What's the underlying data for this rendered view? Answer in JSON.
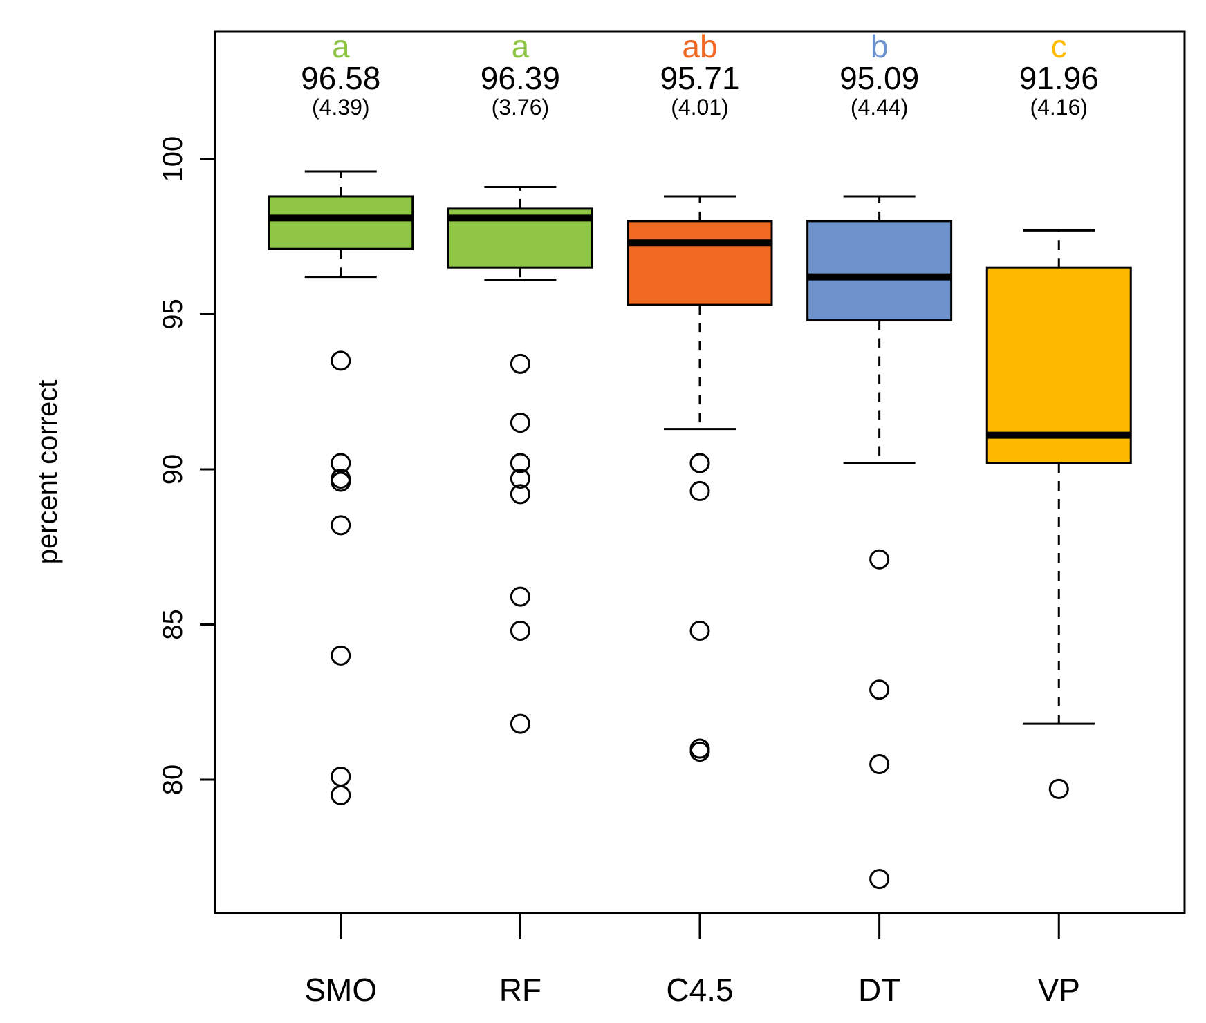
{
  "chart_data": {
    "type": "boxplot",
    "title": "",
    "xlabel": "",
    "ylabel": "percent correct",
    "ylim": [
      75.7,
      104.1
    ],
    "yticks": [
      "80",
      "85",
      "90",
      "95",
      "100"
    ],
    "categories": [
      "SMO",
      "RF",
      "C4.5",
      "DT",
      "VP"
    ],
    "series": [
      {
        "name": "SMO",
        "group": "a",
        "mean": "96.58",
        "sd": "(4.39)",
        "color": "#8FC646",
        "whisker_low": 96.2,
        "q1": 97.1,
        "median": 98.1,
        "q3": 98.8,
        "whisker_high": 99.6,
        "outliers": [
          93.5,
          90.2,
          89.7,
          89.6,
          88.2,
          84.0,
          80.1,
          79.5
        ]
      },
      {
        "name": "RF",
        "group": "a",
        "mean": "96.39",
        "sd": "(3.76)",
        "color": "#8FC646",
        "whisker_low": 96.1,
        "q1": 96.5,
        "median": 98.1,
        "q3": 98.4,
        "whisker_high": 99.1,
        "outliers": [
          93.4,
          91.5,
          90.2,
          89.7,
          89.2,
          85.9,
          84.8,
          81.8
        ]
      },
      {
        "name": "C4.5",
        "group": "ab",
        "mean": "95.71",
        "sd": "(4.01)",
        "color": "#F06A22",
        "whisker_low": 91.3,
        "q1": 95.3,
        "median": 97.3,
        "q3": 98.0,
        "whisker_high": 98.8,
        "outliers": [
          90.2,
          90.2,
          89.3,
          84.8,
          81.0,
          80.9
        ]
      },
      {
        "name": "DT",
        "group": "b",
        "mean": "95.09",
        "sd": "(4.44)",
        "color": "#6D92CC",
        "whisker_low": 90.2,
        "q1": 94.8,
        "median": 96.2,
        "q3": 98.0,
        "whisker_high": 98.8,
        "outliers": [
          87.1,
          82.9,
          80.5,
          76.8
        ]
      },
      {
        "name": "VP",
        "group": "c",
        "mean": "91.96",
        "sd": "(4.16)",
        "color": "#FFBA00",
        "whisker_low": 81.8,
        "q1": 90.2,
        "median": 91.1,
        "q3": 96.5,
        "whisker_high": 97.7,
        "outliers": [
          79.7
        ]
      }
    ]
  }
}
